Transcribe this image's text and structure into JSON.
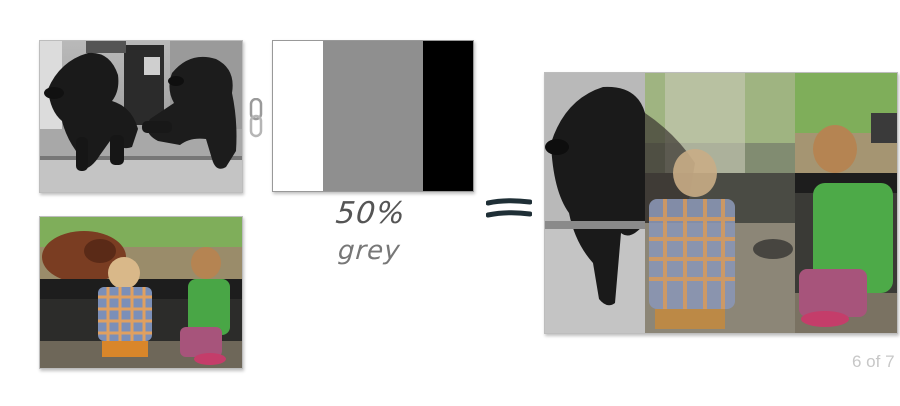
{
  "images": {
    "dogs": {
      "label": "dogs-photo"
    },
    "kids": {
      "label": "kids-photo"
    },
    "result": {
      "label": "blended-result-photo"
    }
  },
  "mask": {
    "bands": [
      {
        "color": "#ffffff",
        "fraction": 0.25
      },
      {
        "color": "#8f8f8f",
        "fraction": 0.5
      },
      {
        "color": "#000000",
        "fraction": 0.25
      }
    ]
  },
  "annotations": {
    "percent": "50%",
    "word": "grey"
  },
  "icons": {
    "link": "chain-link-icon",
    "equals": "equals-sign-icon"
  },
  "pager": {
    "text": "6 of 7"
  }
}
